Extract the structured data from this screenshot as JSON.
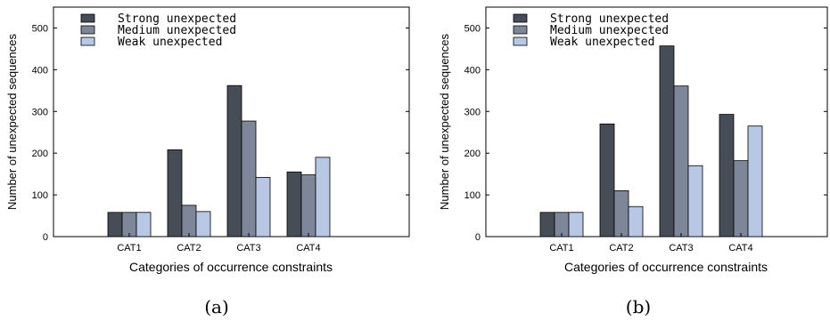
{
  "chart_data": [
    {
      "type": "bar",
      "caption": "(a)",
      "xlabel": "Categories of occurrence constraints",
      "ylabel": "Number of unexpected sequences",
      "ylim": [
        0,
        550
      ],
      "yticks": [
        0,
        100,
        200,
        300,
        400,
        500
      ],
      "categories": [
        "CAT1",
        "CAT2",
        "CAT3",
        "CAT4"
      ],
      "series": [
        {
          "name": "Strong unexpected",
          "color": "#474d57",
          "values": [
            58,
            208,
            362,
            155
          ]
        },
        {
          "name": "Medium unexpected",
          "color": "#7e8799",
          "values": [
            58,
            75,
            277,
            148
          ]
        },
        {
          "name": "Weak unexpected",
          "color": "#b8c7e3",
          "values": [
            58,
            60,
            142,
            190
          ]
        }
      ],
      "legend": "top-left",
      "grid": false
    },
    {
      "type": "bar",
      "caption": "(b)",
      "xlabel": "Categories of occurrence constraints",
      "ylabel": "Number of unexpected sequences",
      "ylim": [
        0,
        550
      ],
      "yticks": [
        0,
        100,
        200,
        300,
        400,
        500
      ],
      "categories": [
        "CAT1",
        "CAT2",
        "CAT3",
        "CAT4"
      ],
      "series": [
        {
          "name": "Strong unexpected",
          "color": "#474d57",
          "values": [
            58,
            270,
            457,
            293
          ]
        },
        {
          "name": "Medium unexpected",
          "color": "#7e8799",
          "values": [
            58,
            110,
            361,
            182
          ]
        },
        {
          "name": "Weak unexpected",
          "color": "#b8c7e3",
          "values": [
            58,
            72,
            170,
            265
          ]
        }
      ],
      "legend": "top-left",
      "grid": false
    }
  ]
}
